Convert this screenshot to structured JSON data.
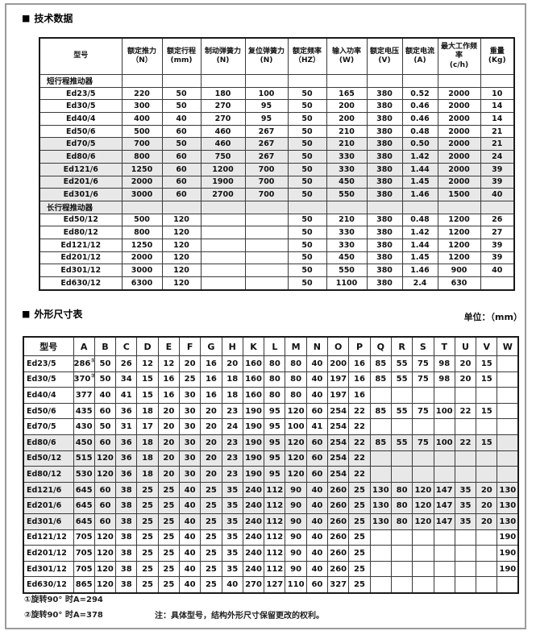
{
  "page": {
    "tech_section_title": "技术数据",
    "dim_section_title": "外形尺寸表",
    "section_bullet": "■",
    "unit_label": "单位：（mm）",
    "footnote1": "①旋转90°  时A=294",
    "footnote2": "②旋转90°  时A=378",
    "note": "注：具体型号，结构外形尺寸保留更改的权利。"
  },
  "colors": {
    "row_shading": "#e8e8e8",
    "frame_border": "#9b9b9b",
    "table_border": "#1a1a1a",
    "text": "#111111"
  },
  "tech_table": {
    "headers": [
      {
        "title": "型号",
        "unit": ""
      },
      {
        "title": "额定推力",
        "unit": "（N）"
      },
      {
        "title": "额定行程",
        "unit": "(mm)"
      },
      {
        "title": "制动弹簧力",
        "unit": "(N)"
      },
      {
        "title": "复位弹簧力",
        "unit": "(N)"
      },
      {
        "title": "额定频率",
        "unit": "（HZ）"
      },
      {
        "title": "输入功率",
        "unit": "(W)"
      },
      {
        "title": "额定电压",
        "unit": "(V)"
      },
      {
        "title": "额定电流",
        "unit": "(A)"
      },
      {
        "title": "最大工作频率",
        "unit": "(c/h)"
      },
      {
        "title": "重量",
        "unit": "(Kg)"
      }
    ],
    "rows": [
      {
        "type": "group",
        "label": "短行程推动器",
        "shaded": false
      },
      {
        "type": "data",
        "model": "Ed23/5",
        "values": [
          "220",
          "50",
          "180",
          "100",
          "50",
          "165",
          "380",
          "0.52",
          "2000",
          "10"
        ],
        "shaded": false
      },
      {
        "type": "data",
        "model": "Ed30/5",
        "values": [
          "300",
          "50",
          "270",
          "95",
          "50",
          "200",
          "380",
          "0.46",
          "2000",
          "14"
        ],
        "shaded": false
      },
      {
        "type": "data",
        "model": "Ed40/4",
        "values": [
          "400",
          "40",
          "270",
          "95",
          "50",
          "200",
          "380",
          "0.46",
          "2000",
          "14"
        ],
        "shaded": false
      },
      {
        "type": "data",
        "model": "Ed50/6",
        "values": [
          "500",
          "60",
          "460",
          "267",
          "50",
          "210",
          "380",
          "0.48",
          "2000",
          "21"
        ],
        "shaded": false
      },
      {
        "type": "data",
        "model": "Ed70/5",
        "values": [
          "700",
          "50",
          "460",
          "267",
          "50",
          "210",
          "380",
          "0.50",
          "2000",
          "21"
        ],
        "shaded": true
      },
      {
        "type": "data",
        "model": "Ed80/6",
        "values": [
          "800",
          "60",
          "750",
          "267",
          "50",
          "330",
          "380",
          "1.42",
          "2000",
          "24"
        ],
        "shaded": true
      },
      {
        "type": "data",
        "model": "Ed121/6",
        "values": [
          "1250",
          "60",
          "1200",
          "700",
          "50",
          "330",
          "380",
          "1.44",
          "2000",
          "39"
        ],
        "shaded": true
      },
      {
        "type": "data",
        "model": "Ed201/6",
        "values": [
          "2000",
          "60",
          "1900",
          "700",
          "50",
          "450",
          "380",
          "1.45",
          "2000",
          "39"
        ],
        "shaded": true
      },
      {
        "type": "data",
        "model": "Ed301/6",
        "values": [
          "3000",
          "60",
          "2700",
          "700",
          "50",
          "550",
          "380",
          "1.46",
          "1500",
          "40"
        ],
        "shaded": true
      },
      {
        "type": "group",
        "label": "长行程推动器",
        "shaded": true
      },
      {
        "type": "data",
        "model": "Ed50/12",
        "values": [
          "500",
          "120",
          "",
          "",
          "50",
          "210",
          "380",
          "0.48",
          "1200",
          "26"
        ],
        "shaded": false
      },
      {
        "type": "data",
        "model": "Ed80/12",
        "values": [
          "800",
          "120",
          "",
          "",
          "50",
          "330",
          "380",
          "1.42",
          "1200",
          "27"
        ],
        "shaded": false
      },
      {
        "type": "data",
        "model": "Ed121/12",
        "values": [
          "1250",
          "120",
          "",
          "",
          "50",
          "330",
          "380",
          "1.44",
          "1200",
          "39"
        ],
        "shaded": false
      },
      {
        "type": "data",
        "model": "Ed201/12",
        "values": [
          "2000",
          "120",
          "",
          "",
          "50",
          "450",
          "380",
          "1.45",
          "1200",
          "39"
        ],
        "shaded": false
      },
      {
        "type": "data",
        "model": "Ed301/12",
        "values": [
          "3000",
          "120",
          "",
          "",
          "50",
          "550",
          "380",
          "1.46",
          "900",
          "40"
        ],
        "shaded": false
      },
      {
        "type": "data",
        "model": "Ed630/12",
        "values": [
          "6300",
          "120",
          "",
          "",
          "50",
          "1100",
          "380",
          "2.4",
          "630",
          ""
        ],
        "shaded": false
      }
    ]
  },
  "dim_table": {
    "headers": [
      "型号",
      "A",
      "B",
      "C",
      "D",
      "E",
      "F",
      "G",
      "H",
      "K",
      "L",
      "M",
      "N",
      "O",
      "P",
      "Q",
      "R",
      "S",
      "T",
      "U",
      "V",
      "W"
    ],
    "rows": [
      {
        "model": "Ed23/5",
        "a_sup": "①",
        "values": [
          "286",
          "50",
          "26",
          "12",
          "12",
          "20",
          "16",
          "20",
          "160",
          "80",
          "80",
          "40",
          "200",
          "16",
          "85",
          "55",
          "75",
          "98",
          "20",
          "15",
          ""
        ],
        "shaded": false
      },
      {
        "model": "Ed30/5",
        "a_sup": "②",
        "values": [
          "370",
          "50",
          "34",
          "15",
          "16",
          "25",
          "16",
          "18",
          "160",
          "80",
          "80",
          "40",
          "197",
          "16",
          "85",
          "55",
          "75",
          "98",
          "20",
          "15",
          ""
        ],
        "shaded": false
      },
      {
        "model": "Ed40/4",
        "a_sup": "",
        "values": [
          "377",
          "40",
          "41",
          "15",
          "16",
          "30",
          "16",
          "18",
          "160",
          "80",
          "80",
          "40",
          "197",
          "16",
          "",
          "",
          "",
          "",
          "",
          "",
          ""
        ],
        "shaded": false
      },
      {
        "model": "Ed50/6",
        "a_sup": "",
        "values": [
          "435",
          "60",
          "36",
          "18",
          "20",
          "30",
          "20",
          "23",
          "190",
          "95",
          "120",
          "60",
          "254",
          "22",
          "85",
          "55",
          "75",
          "100",
          "22",
          "15",
          ""
        ],
        "shaded": false
      },
      {
        "model": "Ed70/5",
        "a_sup": "",
        "values": [
          "430",
          "50",
          "31",
          "17",
          "20",
          "30",
          "20",
          "24",
          "190",
          "95",
          "100",
          "41",
          "254",
          "22",
          "",
          "",
          "",
          "",
          "",
          "",
          ""
        ],
        "shaded": false
      },
      {
        "model": "Ed80/6",
        "a_sup": "",
        "values": [
          "450",
          "60",
          "36",
          "18",
          "20",
          "30",
          "20",
          "23",
          "190",
          "95",
          "120",
          "60",
          "254",
          "22",
          "85",
          "55",
          "75",
          "100",
          "22",
          "15",
          ""
        ],
        "shaded": true
      },
      {
        "model": "Ed50/12",
        "a_sup": "",
        "values": [
          "515",
          "120",
          "36",
          "18",
          "20",
          "30",
          "20",
          "23",
          "190",
          "95",
          "120",
          "60",
          "254",
          "22",
          "",
          "",
          "",
          "",
          "",
          "",
          ""
        ],
        "shaded": true
      },
      {
        "model": "Ed80/12",
        "a_sup": "",
        "values": [
          "530",
          "120",
          "36",
          "18",
          "20",
          "30",
          "20",
          "23",
          "190",
          "95",
          "120",
          "60",
          "254",
          "22",
          "",
          "",
          "",
          "",
          "",
          "",
          ""
        ],
        "shaded": true
      },
      {
        "model": "Ed121/6",
        "a_sup": "",
        "values": [
          "645",
          "60",
          "38",
          "25",
          "25",
          "40",
          "25",
          "35",
          "240",
          "112",
          "90",
          "40",
          "260",
          "25",
          "130",
          "80",
          "120",
          "147",
          "35",
          "20",
          "130"
        ],
        "shaded": true
      },
      {
        "model": "Ed201/6",
        "a_sup": "",
        "values": [
          "645",
          "60",
          "38",
          "25",
          "25",
          "40",
          "25",
          "35",
          "240",
          "112",
          "90",
          "40",
          "260",
          "25",
          "130",
          "80",
          "120",
          "147",
          "35",
          "20",
          "130"
        ],
        "shaded": true
      },
      {
        "model": "Ed301/6",
        "a_sup": "",
        "values": [
          "645",
          "60",
          "38",
          "25",
          "25",
          "40",
          "25",
          "35",
          "240",
          "112",
          "90",
          "40",
          "260",
          "25",
          "130",
          "80",
          "120",
          "147",
          "35",
          "20",
          "130"
        ],
        "shaded": true
      },
      {
        "model": "Ed121/12",
        "a_sup": "",
        "values": [
          "705",
          "120",
          "38",
          "25",
          "25",
          "40",
          "25",
          "35",
          "240",
          "112",
          "90",
          "40",
          "260",
          "25",
          "",
          "",
          "",
          "",
          "",
          "",
          "190"
        ],
        "shaded": false
      },
      {
        "model": "Ed201/12",
        "a_sup": "",
        "values": [
          "705",
          "120",
          "38",
          "25",
          "25",
          "40",
          "25",
          "35",
          "240",
          "112",
          "90",
          "40",
          "260",
          "25",
          "",
          "",
          "",
          "",
          "",
          "",
          "190"
        ],
        "shaded": false
      },
      {
        "model": "Ed301/12",
        "a_sup": "",
        "values": [
          "705",
          "120",
          "38",
          "25",
          "25",
          "40",
          "25",
          "35",
          "240",
          "112",
          "90",
          "40",
          "260",
          "25",
          "",
          "",
          "",
          "",
          "",
          "",
          "190"
        ],
        "shaded": false
      },
      {
        "model": "Ed630/12",
        "a_sup": "",
        "values": [
          "865",
          "120",
          "38",
          "25",
          "25",
          "40",
          "25",
          "40",
          "270",
          "127",
          "110",
          "60",
          "327",
          "25",
          "",
          "",
          "",
          "",
          "",
          "",
          ""
        ],
        "shaded": false
      }
    ]
  }
}
